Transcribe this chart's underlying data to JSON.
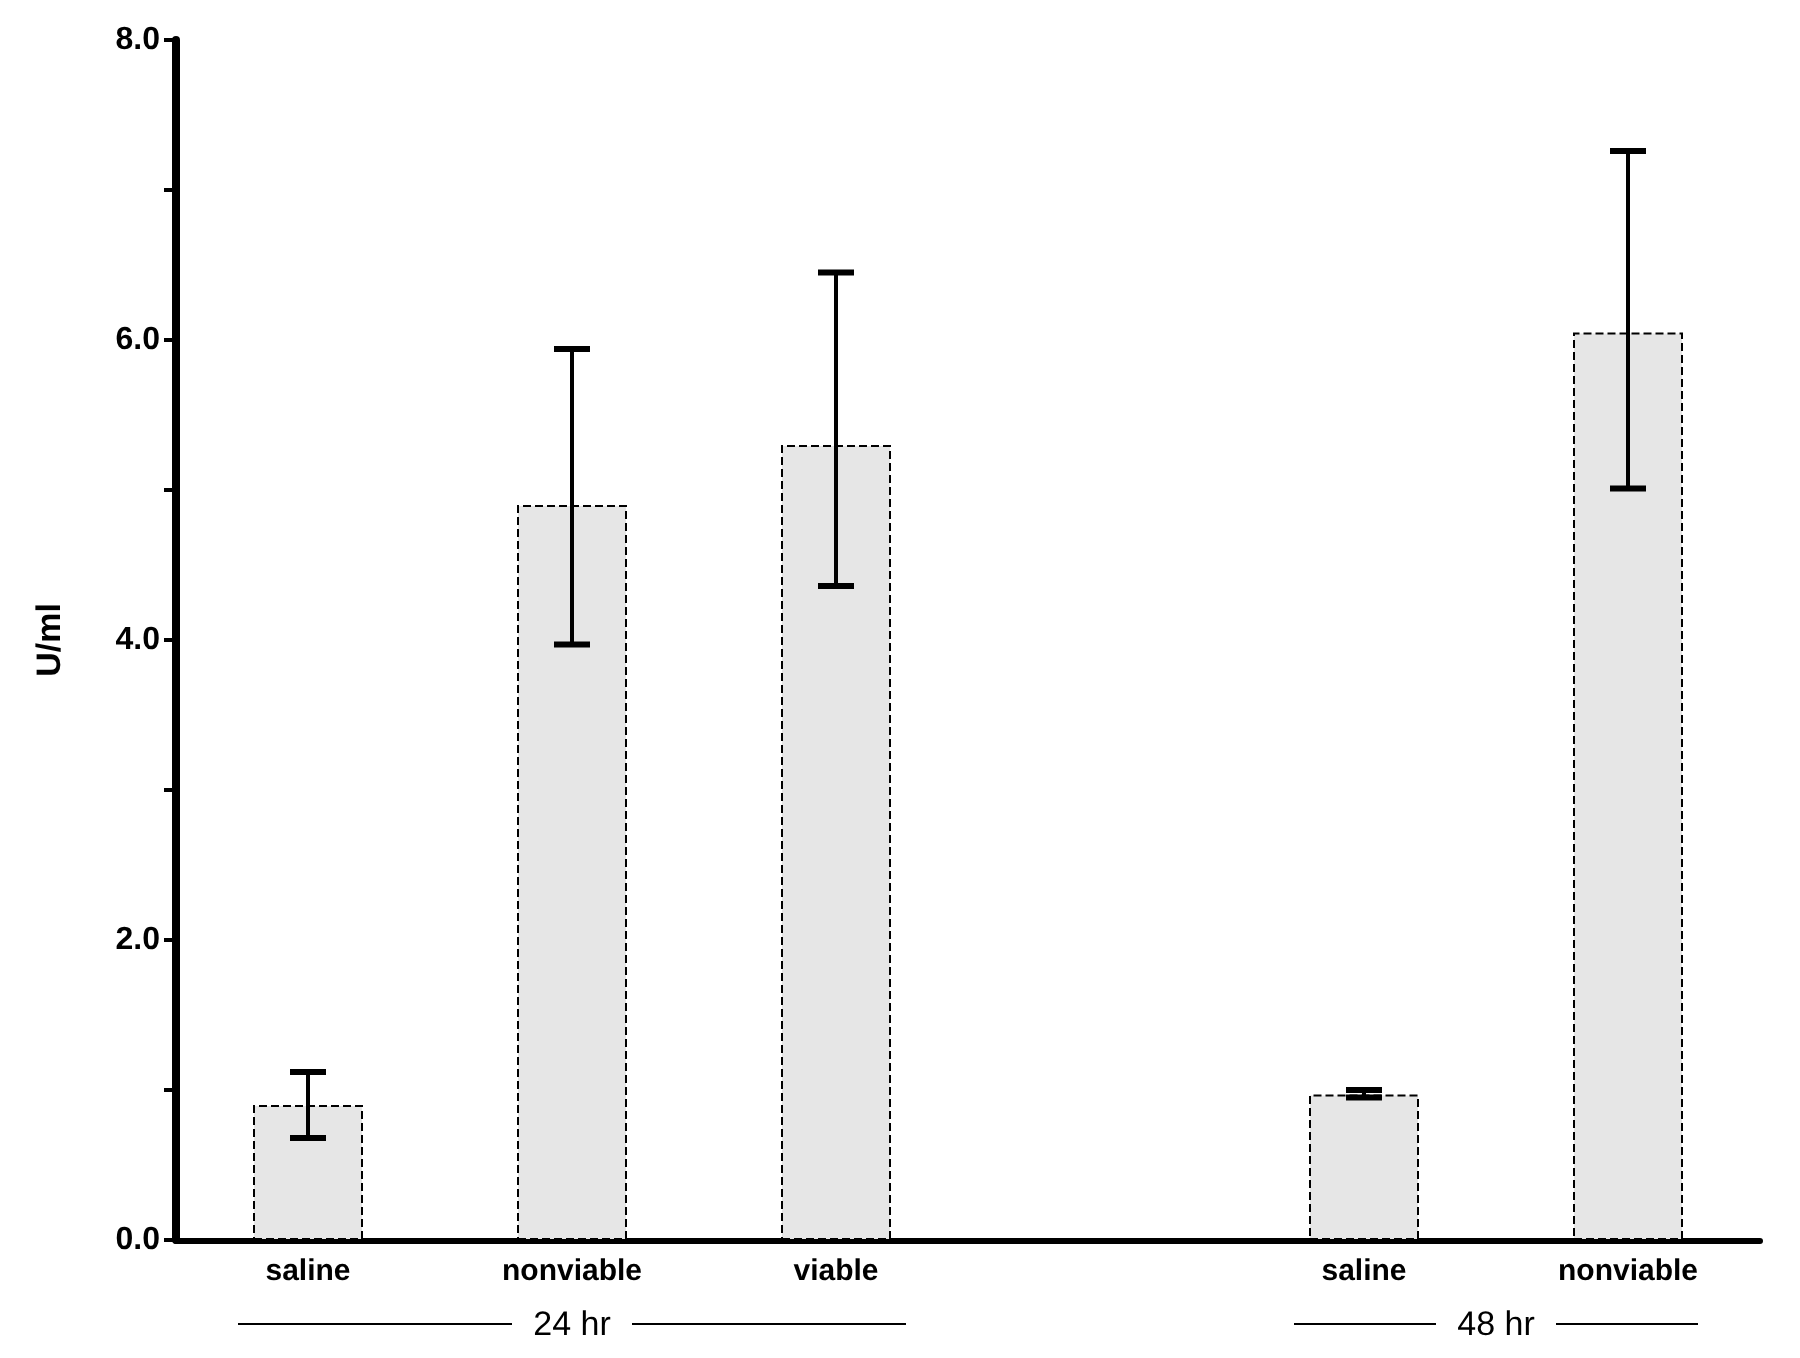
{
  "chart_data": {
    "type": "bar",
    "ylabel": "U/ml",
    "categories": [
      "saline",
      "nonviable",
      "viable",
      null,
      "saline",
      "nonviable"
    ],
    "values": [
      0.9,
      4.9,
      5.3,
      null,
      0.97,
      6.05
    ],
    "errors": [
      [
        0.68,
        1.12
      ],
      [
        3.97,
        5.94
      ],
      [
        4.36,
        6.45
      ],
      null,
      [
        0.95,
        1.0
      ],
      [
        5.01,
        7.26
      ]
    ],
    "color": "#e6e6e6",
    "ylim": [
      0,
      8
    ],
    "yticks": [
      {
        "value": 0,
        "label": "0.0"
      },
      {
        "value": 1,
        "label": null
      },
      {
        "value": 2,
        "label": "2.0"
      },
      {
        "value": 3,
        "label": null
      },
      {
        "value": 4,
        "label": "4.0"
      },
      {
        "value": 5,
        "label": null
      },
      {
        "value": 6,
        "label": "6.0"
      },
      {
        "value": 7,
        "label": null
      },
      {
        "value": 8,
        "label": "8.0"
      }
    ],
    "annotations": [
      "24 hr",
      "48 hr"
    ],
    "marker": "none"
  }
}
